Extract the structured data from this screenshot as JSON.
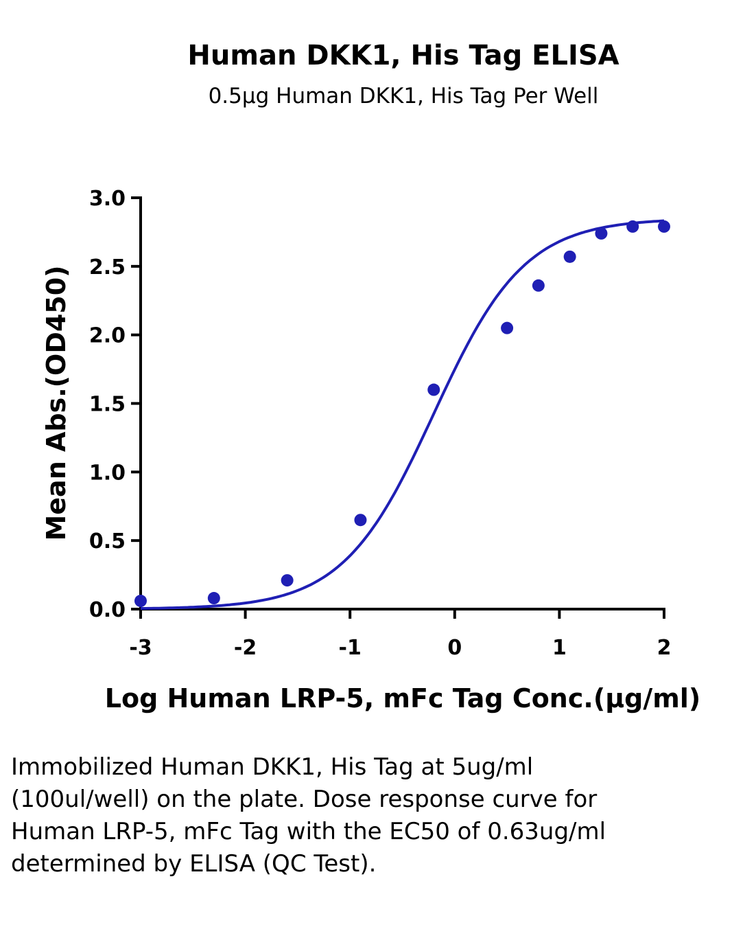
{
  "chart_data": {
    "type": "scatter",
    "title": "Human DKK1, His Tag ELISA",
    "subtitle": "0.5μg Human DKK1, His Tag Per Well",
    "xlabel": "Log  Human LRP-5, mFc Tag Conc.(μg/ml)",
    "ylabel": "Mean Abs.(OD450)",
    "xlim": [
      -3,
      2
    ],
    "ylim": [
      0,
      3
    ],
    "x_ticks": [
      "-3",
      "-2",
      "-1",
      "0",
      "1",
      "2"
    ],
    "y_ticks": [
      "0.0",
      "0.5",
      "1.0",
      "1.5",
      "2.0",
      "2.5",
      "3.0"
    ],
    "grid": false,
    "series": [
      {
        "points": [
          {
            "x": -3.0,
            "y": 0.06
          },
          {
            "x": -2.3,
            "y": 0.08
          },
          {
            "x": -1.6,
            "y": 0.21
          },
          {
            "x": -0.9,
            "y": 0.65
          },
          {
            "x": -0.2,
            "y": 1.6
          },
          {
            "x": 0.5,
            "y": 2.05
          },
          {
            "x": 0.8,
            "y": 2.36
          },
          {
            "x": 1.1,
            "y": 2.57
          },
          {
            "x": 1.4,
            "y": 2.74
          },
          {
            "x": 1.7,
            "y": 2.79
          },
          {
            "x": 2.0,
            "y": 2.79
          }
        ],
        "fit": {
          "bottom": 0.0,
          "top": 2.85,
          "logEC50": -0.2,
          "hill": 1.0
        },
        "color": "#1f1fb4"
      }
    ]
  },
  "caption": "Immobilized Human DKK1, His Tag at 5ug/ml (100ul/well) on the plate. Dose response curve for Human LRP-5, mFc Tag with the EC50 of 0.63ug/ml determined by ELISA (QC Test)."
}
